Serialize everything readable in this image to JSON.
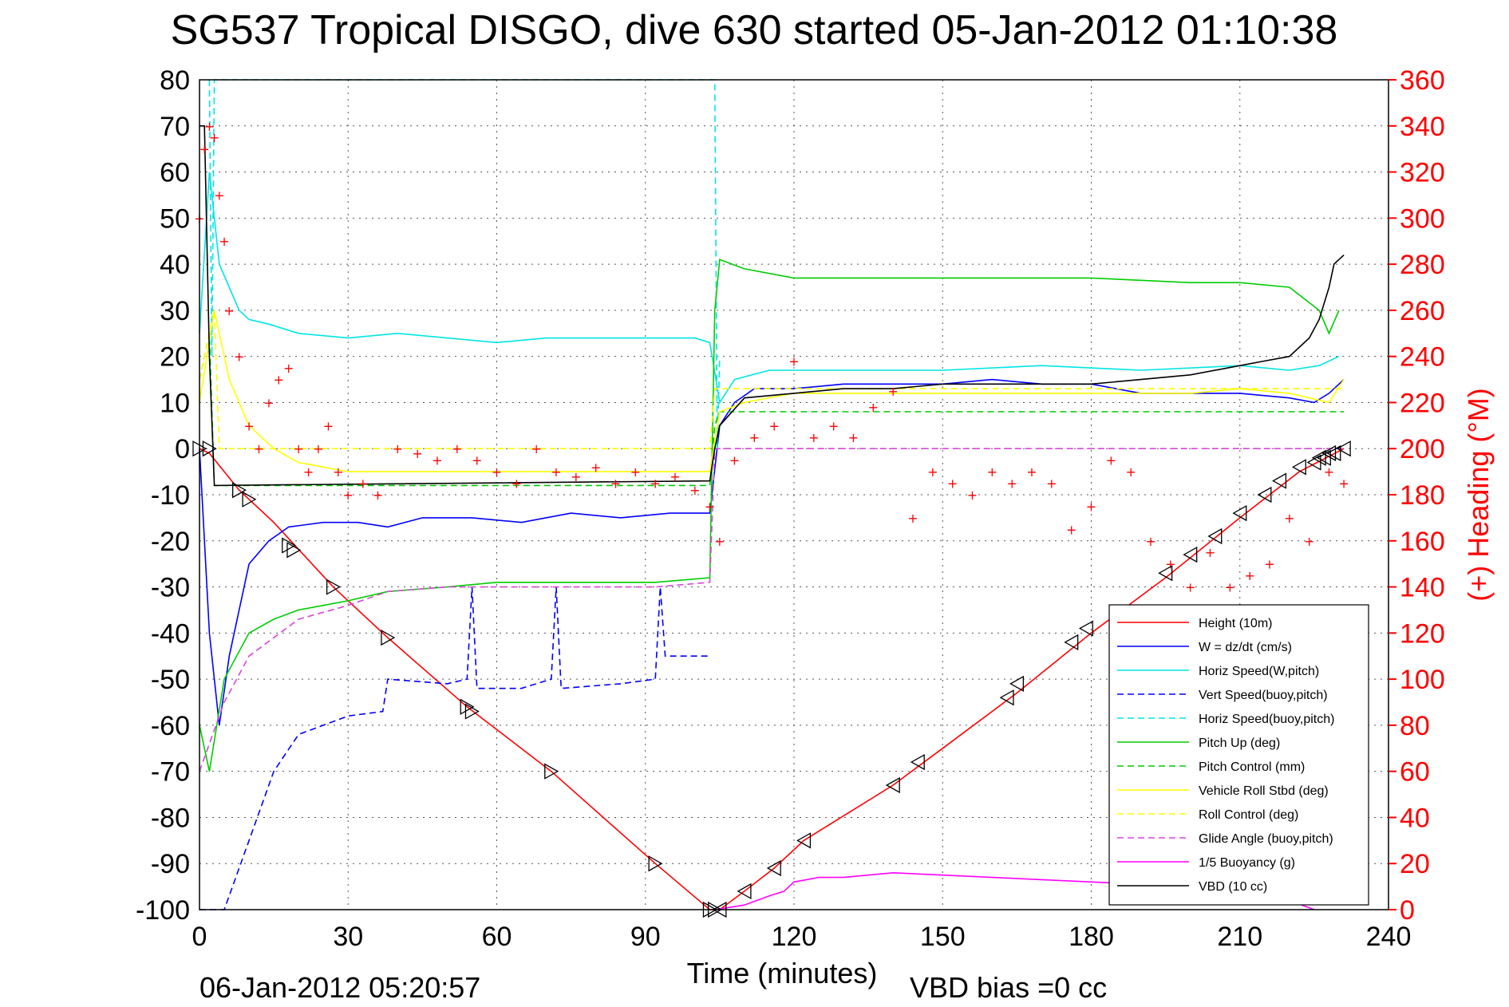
{
  "chart_data": {
    "type": "line",
    "title": "SG537 Tropical DISGO, dive 630 started 05-Jan-2012 01:10:38",
    "xlabel": "Time (minutes)",
    "ylabel_right": "(+) Heading (°M)",
    "footer_date": "06-Jan-2012 05:20:57",
    "footer_note": "VBD bias =0 cc",
    "xlim": [
      0,
      240
    ],
    "ylim": [
      -100,
      80
    ],
    "ylim_right": [
      0,
      360
    ],
    "x_ticks": [
      0,
      30,
      60,
      90,
      120,
      150,
      180,
      210,
      240
    ],
    "y_ticks": [
      80,
      70,
      60,
      50,
      40,
      30,
      20,
      10,
      0,
      -10,
      -20,
      -30,
      -40,
      -50,
      -60,
      -70,
      -80,
      -90,
      -100
    ],
    "y_ticks_right": [
      360,
      340,
      320,
      300,
      280,
      260,
      240,
      220,
      200,
      180,
      160,
      140,
      120,
      100,
      80,
      60,
      40,
      20,
      0
    ],
    "grid": true,
    "legend_position": "bottom-right",
    "series": [
      {
        "name": "Height (10m)",
        "color": "#ff0000",
        "style": "solid",
        "x": [
          0,
          2,
          8,
          15,
          27,
          38,
          54,
          71,
          92,
          103,
          105,
          110,
          116,
          122,
          140,
          150,
          165,
          180,
          195,
          210,
          222,
          231
        ],
        "y": [
          0,
          -1,
          -9,
          -16,
          -30,
          -41,
          -56,
          -70,
          -90,
          -100,
          -100,
          -96,
          -91,
          -85,
          -73,
          -65,
          -53,
          -40,
          -28,
          -15,
          -5,
          0
        ]
      },
      {
        "name": "W = dz/dt (cm/s)",
        "color": "#0000ff",
        "style": "solid",
        "x": [
          0,
          2,
          4,
          6,
          8,
          10,
          14,
          18,
          25,
          32,
          38,
          45,
          55,
          65,
          75,
          85,
          95,
          103,
          105,
          108,
          112,
          120,
          130,
          140,
          150,
          160,
          170,
          180,
          190,
          200,
          210,
          220,
          225,
          228,
          231
        ],
        "y": [
          0,
          -40,
          -60,
          -45,
          -35,
          -25,
          -20,
          -17,
          -16,
          -16,
          -17,
          -15,
          -15,
          -16,
          -14,
          -15,
          -14,
          -14,
          5,
          10,
          13,
          13,
          14,
          14,
          14,
          15,
          14,
          14,
          12,
          12,
          12,
          11,
          10,
          12,
          15
        ]
      },
      {
        "name": "Horiz Speed(W,pitch)",
        "color": "#00e5e5",
        "style": "solid",
        "x": [
          0,
          2,
          4,
          6,
          8,
          10,
          14,
          20,
          30,
          40,
          50,
          60,
          70,
          80,
          90,
          100,
          103,
          105,
          108,
          115,
          130,
          150,
          170,
          190,
          210,
          220,
          226,
          230
        ],
        "y": [
          25,
          60,
          40,
          35,
          30,
          28,
          27,
          25,
          24,
          25,
          24,
          23,
          24,
          24,
          24,
          24,
          23,
          10,
          15,
          17,
          17,
          17,
          18,
          17,
          18,
          17,
          18,
          20
        ]
      },
      {
        "name": "Vert Speed(buoy,pitch)",
        "color": "#0000ff",
        "style": "dashed",
        "x": [
          0,
          5,
          10,
          15,
          20,
          30,
          37,
          38,
          50,
          54,
          55,
          56,
          65,
          71,
          72,
          73,
          85,
          92,
          93,
          94,
          103
        ],
        "y": [
          -100,
          -100,
          -85,
          -70,
          -62,
          -58,
          -57,
          -50,
          -51,
          -50,
          -30,
          -52,
          -52,
          -50,
          -30,
          -52,
          -51,
          -50,
          -30,
          -45,
          -45
        ]
      },
      {
        "name": "Horiz Speed(buoy,pitch)",
        "color": "#00e5e5",
        "style": "dashed",
        "x": [
          2,
          2.5,
          3,
          104,
          104.5,
          105
        ],
        "y": [
          80,
          20,
          80,
          80,
          0,
          20
        ]
      },
      {
        "name": "Pitch Up (deg)",
        "color": "#00cc00",
        "style": "solid",
        "x": [
          0,
          2,
          5,
          10,
          15,
          20,
          25,
          30,
          38,
          50,
          60,
          70,
          80,
          92,
          103,
          104,
          105,
          110,
          120,
          140,
          160,
          180,
          200,
          210,
          220,
          226,
          228,
          230
        ],
        "y": [
          -60,
          -70,
          -50,
          -40,
          -37,
          -35,
          -34,
          -33,
          -31,
          -30,
          -29,
          -29,
          -29,
          -29,
          -28,
          30,
          41,
          39,
          37,
          37,
          37,
          37,
          36,
          36,
          35,
          30,
          25,
          30
        ]
      },
      {
        "name": "Pitch Control (mm)",
        "color": "#00cc00",
        "style": "dashed",
        "x": [
          0,
          2,
          3,
          103,
          104,
          105,
          231
        ],
        "y": [
          15,
          25,
          -8,
          -8,
          5,
          8,
          8
        ]
      },
      {
        "name": "Vehicle Roll Stbd (deg)",
        "color": "#ffff00",
        "style": "solid",
        "x": [
          0,
          3,
          6,
          10,
          15,
          20,
          30,
          40,
          50,
          60,
          70,
          80,
          90,
          100,
          103,
          105,
          110,
          120,
          140,
          160,
          180,
          200,
          210,
          220,
          228,
          231
        ],
        "y": [
          10,
          30,
          15,
          5,
          0,
          -3,
          -5,
          -5,
          -5,
          -5,
          -5,
          -5,
          -5,
          -5,
          -5,
          8,
          10,
          12,
          12,
          12,
          12,
          12,
          13,
          12,
          10,
          15
        ]
      },
      {
        "name": "Roll Control (deg)",
        "color": "#ffff00",
        "style": "dashed",
        "x": [
          0,
          3,
          4,
          103,
          104,
          231
        ],
        "y": [
          15,
          30,
          0,
          0,
          13,
          13
        ]
      },
      {
        "name": "Glide Angle (buoy,pitch)",
        "color": "#dd44dd",
        "style": "dashed",
        "x": [
          0,
          5,
          10,
          20,
          30,
          38,
          50,
          60,
          70,
          80,
          92,
          103,
          104,
          231
        ],
        "y": [
          -70,
          -55,
          -45,
          -37,
          -34,
          -31,
          -30,
          -30,
          -30,
          -30,
          -30,
          -29,
          0,
          0
        ]
      },
      {
        "name": "1/5 Buoyancy (g)",
        "color": "#ff00ff",
        "style": "solid",
        "x": [
          104,
          110,
          115,
          118,
          120,
          125,
          130,
          140,
          150,
          170,
          190,
          200,
          205,
          210,
          220,
          225
        ],
        "y": [
          -100,
          -99,
          -97,
          -96,
          -94,
          -93,
          -93,
          -92,
          -92.5,
          -93.5,
          -94.5,
          -95,
          -96,
          -96.5,
          -98,
          -100
        ]
      },
      {
        "name": "VBD (10 cc)",
        "color": "#000000",
        "style": "solid",
        "x": [
          0,
          1,
          2,
          3,
          103,
          104,
          105,
          110,
          120,
          130,
          140,
          150,
          160,
          180,
          190,
          200,
          210,
          215,
          220,
          224,
          226,
          228,
          229,
          231
        ],
        "y": [
          70,
          70,
          20,
          -8,
          -7,
          0,
          5,
          11,
          12,
          13,
          13,
          14,
          14,
          14,
          15,
          16,
          18,
          19,
          20,
          24,
          28,
          35,
          40,
          42
        ]
      }
    ],
    "heading": {
      "name": "(+) Heading (°M)",
      "color": "#ff0000",
      "axis": "right",
      "x": [
        0,
        1,
        2,
        3,
        4,
        5,
        6,
        8,
        10,
        12,
        14,
        16,
        18,
        20,
        22,
        24,
        26,
        28,
        30,
        33,
        36,
        40,
        44,
        48,
        52,
        56,
        60,
        64,
        68,
        72,
        76,
        80,
        84,
        88,
        92,
        96,
        100,
        103,
        105,
        108,
        112,
        116,
        120,
        124,
        128,
        132,
        136,
        140,
        144,
        148,
        152,
        156,
        160,
        164,
        168,
        172,
        176,
        180,
        184,
        188,
        192,
        196,
        200,
        204,
        208,
        212,
        216,
        220,
        224,
        228,
        231
      ],
      "y": [
        300,
        330,
        340,
        335,
        310,
        290,
        260,
        240,
        210,
        200,
        220,
        230,
        235,
        200,
        190,
        200,
        210,
        190,
        180,
        185,
        180,
        200,
        198,
        195,
        200,
        195,
        190,
        185,
        200,
        190,
        188,
        192,
        185,
        190,
        185,
        188,
        182,
        175,
        160,
        195,
        205,
        210,
        238,
        205,
        210,
        205,
        218,
        225,
        170,
        190,
        185,
        180,
        190,
        185,
        190,
        185,
        165,
        175,
        195,
        190,
        160,
        150,
        140,
        155,
        140,
        145,
        150,
        170,
        160,
        190,
        185
      ]
    },
    "markers": {
      "descent_marker_x": [
        0,
        2,
        8,
        10,
        18,
        19,
        27,
        38,
        54,
        55,
        71,
        92,
        103,
        104
      ],
      "descent_marker_y": [
        0,
        0,
        -9,
        -11,
        -21,
        -22,
        -30,
        -41,
        -56,
        -57,
        -70,
        -90,
        -100,
        -100
      ],
      "ascent_marker_x": [
        105,
        110,
        116,
        122,
        140,
        145,
        163,
        165,
        176,
        179,
        195,
        200,
        205,
        210,
        215,
        218,
        222,
        225,
        226,
        227,
        228,
        229,
        231
      ],
      "ascent_marker_y": [
        -100,
        -96,
        -91,
        -85,
        -73,
        -68,
        -54,
        -51,
        -42,
        -39,
        -27,
        -23,
        -19,
        -14,
        -10,
        -7,
        -4,
        -3,
        -2,
        -2,
        -1,
        -1,
        0
      ]
    }
  }
}
